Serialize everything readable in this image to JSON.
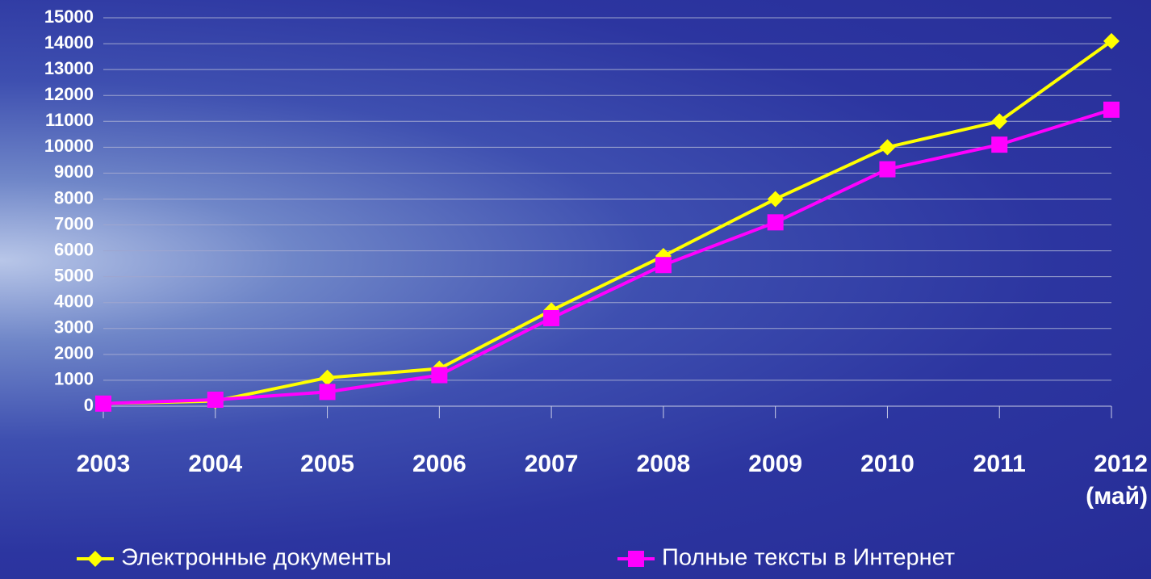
{
  "chart_data": {
    "type": "line",
    "categories": [
      "2003",
      "2004",
      "2005",
      "2006",
      "2007",
      "2008",
      "2009",
      "2010",
      "2011",
      "2012 (май)"
    ],
    "series": [
      {
        "name": "Электронные документы",
        "color": "#ffff00",
        "marker": "diamond",
        "values": [
          100,
          200,
          1100,
          1450,
          3700,
          5800,
          8000,
          10000,
          11000,
          14100
        ]
      },
      {
        "name": "Полные тексты в Интернет",
        "color": "#ff00ff",
        "marker": "square",
        "values": [
          100,
          250,
          550,
          1200,
          3400,
          5450,
          7100,
          9150,
          10100,
          11450
        ]
      }
    ],
    "ylim": [
      0,
      15000
    ],
    "yticks": [
      0,
      1000,
      2000,
      3000,
      4000,
      5000,
      6000,
      7000,
      8000,
      9000,
      10000,
      11000,
      12000,
      13000,
      14000,
      15000
    ],
    "grid": true,
    "legend": "bottom"
  }
}
